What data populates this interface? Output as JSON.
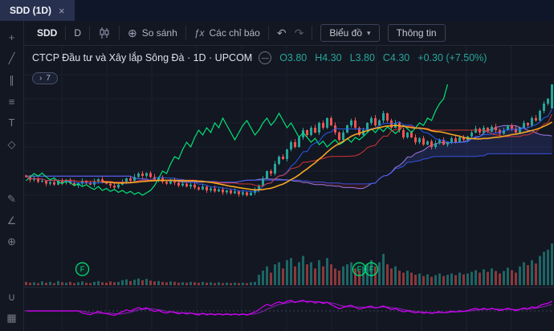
{
  "tabbar": {
    "active_tab": "SDD (1D)"
  },
  "icons": {
    "close": "×",
    "compare": "⊕",
    "fx": "ƒx",
    "undo": "↶",
    "redo": "↷",
    "chevron_down": "▾",
    "chevron_right": "›",
    "minus": "—"
  },
  "toolbar": {
    "symbol": "SDD",
    "interval": "D",
    "compare": "So sánh",
    "indicators": "Các chỉ báo",
    "chart_menu": "Biểu đồ",
    "info": "Thông tin"
  },
  "legend": {
    "title": "CTCP Đầu tư và Xây lắp Sông Đà · 1D · UPCOM",
    "o": "O3.80",
    "h": "H4.30",
    "l": "L3.80",
    "c": "C4.30",
    "change": "+0.30 (+7.50%)"
  },
  "badge": {
    "count": "7"
  },
  "markers": {
    "label": "F",
    "indices": [
      14,
      83,
      86
    ]
  },
  "sidebar": {
    "tools": [
      {
        "name": "crosshair-tool",
        "glyph": "+"
      },
      {
        "name": "trend-line-tool",
        "glyph": "╱"
      },
      {
        "name": "parallel-channel-tool",
        "glyph": "∥"
      },
      {
        "name": "fib-retracement-tool",
        "glyph": "≡"
      },
      {
        "name": "text-tool",
        "glyph": "T"
      },
      {
        "name": "shapes-tool",
        "glyph": "◇"
      },
      {
        "name": "brush-tool",
        "glyph": "✎",
        "gap": true
      },
      {
        "name": "measure-tool",
        "glyph": "∠"
      },
      {
        "name": "zoom-tool",
        "glyph": "⊕"
      },
      {
        "name": "magnet-tool",
        "glyph": "∪",
        "gap": true
      },
      {
        "name": "remove-objects-tool",
        "glyph": "▦"
      }
    ]
  },
  "colors": {
    "up": "#26a69a",
    "down": "#ef5350",
    "vol_up": "rgba(38,166,154,0.55)",
    "vol_down": "rgba(239,83,80,0.55)",
    "chikou": "#00e676",
    "tenkan": "#2962ff",
    "kijun": "#e53935",
    "ma": "#f5a623",
    "senA": "#b388ff",
    "senB": "#3d5afe",
    "cloud_bull": "rgba(63,81,181,0.22)",
    "cloud_bear": "rgba(183,28,28,0.18)",
    "rsi": "#d500f9",
    "rsi_smooth": "#7b1fa2",
    "marker": "#00e676",
    "grid": "#1b2130",
    "dotted": "#3c4258"
  },
  "chart_data": {
    "type": "candlestick",
    "symbol": "SDD",
    "interval": "1D",
    "exchange": "UPCOM",
    "price_range": [
      1.85,
      4.6
    ],
    "last_open": 3.8,
    "overlays": [
      "ichimoku-cloud",
      "tenkan",
      "kijun",
      "ma-orange",
      "chikou-green"
    ],
    "lower_pane": "oscillator",
    "closes": [
      2.38,
      2.32,
      2.35,
      2.28,
      2.3,
      2.24,
      2.27,
      2.22,
      2.3,
      2.26,
      2.32,
      2.25,
      2.2,
      2.24,
      2.3,
      2.26,
      2.22,
      2.28,
      2.33,
      2.27,
      2.24,
      2.2,
      2.16,
      2.22,
      2.28,
      2.35,
      2.3,
      2.38,
      2.45,
      2.4,
      2.46,
      2.38,
      2.32,
      2.36,
      2.28,
      2.24,
      2.3,
      2.26,
      2.2,
      2.24,
      2.18,
      2.22,
      2.16,
      2.12,
      2.18,
      2.1,
      2.14,
      2.08,
      2.12,
      2.06,
      2.1,
      2.04,
      2.08,
      2.02,
      2.06,
      2.0,
      2.05,
      2.1,
      2.2,
      2.35,
      2.5,
      2.45,
      2.65,
      2.8,
      2.75,
      2.95,
      3.1,
      3.0,
      3.2,
      3.35,
      3.25,
      3.4,
      3.3,
      3.5,
      3.4,
      3.6,
      3.45,
      3.3,
      3.15,
      3.3,
      3.45,
      3.55,
      3.4,
      3.25,
      3.35,
      3.5,
      3.6,
      3.45,
      3.55,
      3.7,
      3.55,
      3.4,
      3.5,
      3.35,
      3.2,
      3.3,
      3.2,
      3.1,
      3.18,
      3.05,
      3.12,
      3.0,
      3.08,
      3.15,
      3.05,
      3.1,
      3.18,
      3.1,
      3.2,
      3.15,
      3.22,
      3.3,
      3.38,
      3.3,
      3.4,
      3.32,
      3.42,
      3.35,
      3.28,
      3.35,
      3.45,
      3.38,
      3.3,
      3.4,
      3.5,
      3.45,
      3.6,
      3.55,
      3.75,
      3.9,
      4.0,
      4.3
    ],
    "volumes": [
      8,
      6,
      7,
      5,
      9,
      6,
      8,
      5,
      10,
      7,
      6,
      8,
      5,
      7,
      9,
      6,
      5,
      8,
      10,
      7,
      6,
      9,
      7,
      8,
      12,
      14,
      10,
      13,
      16,
      12,
      15,
      11,
      9,
      10,
      8,
      7,
      9,
      8,
      6,
      7,
      6,
      8,
      7,
      6,
      8,
      6,
      7,
      5,
      7,
      5,
      6,
      5,
      6,
      5,
      6,
      5,
      7,
      8,
      25,
      35,
      45,
      30,
      50,
      55,
      40,
      60,
      65,
      45,
      55,
      70,
      50,
      55,
      40,
      60,
      45,
      65,
      50,
      40,
      35,
      45,
      50,
      55,
      40,
      35,
      45,
      50,
      60,
      45,
      55,
      75,
      50,
      40,
      45,
      35,
      30,
      35,
      30,
      25,
      28,
      22,
      26,
      20,
      24,
      28,
      22,
      25,
      28,
      24,
      30,
      26,
      28,
      32,
      36,
      30,
      38,
      32,
      40,
      34,
      28,
      34,
      42,
      36,
      30,
      45,
      55,
      48,
      60,
      52,
      70,
      80,
      85,
      100
    ]
  }
}
